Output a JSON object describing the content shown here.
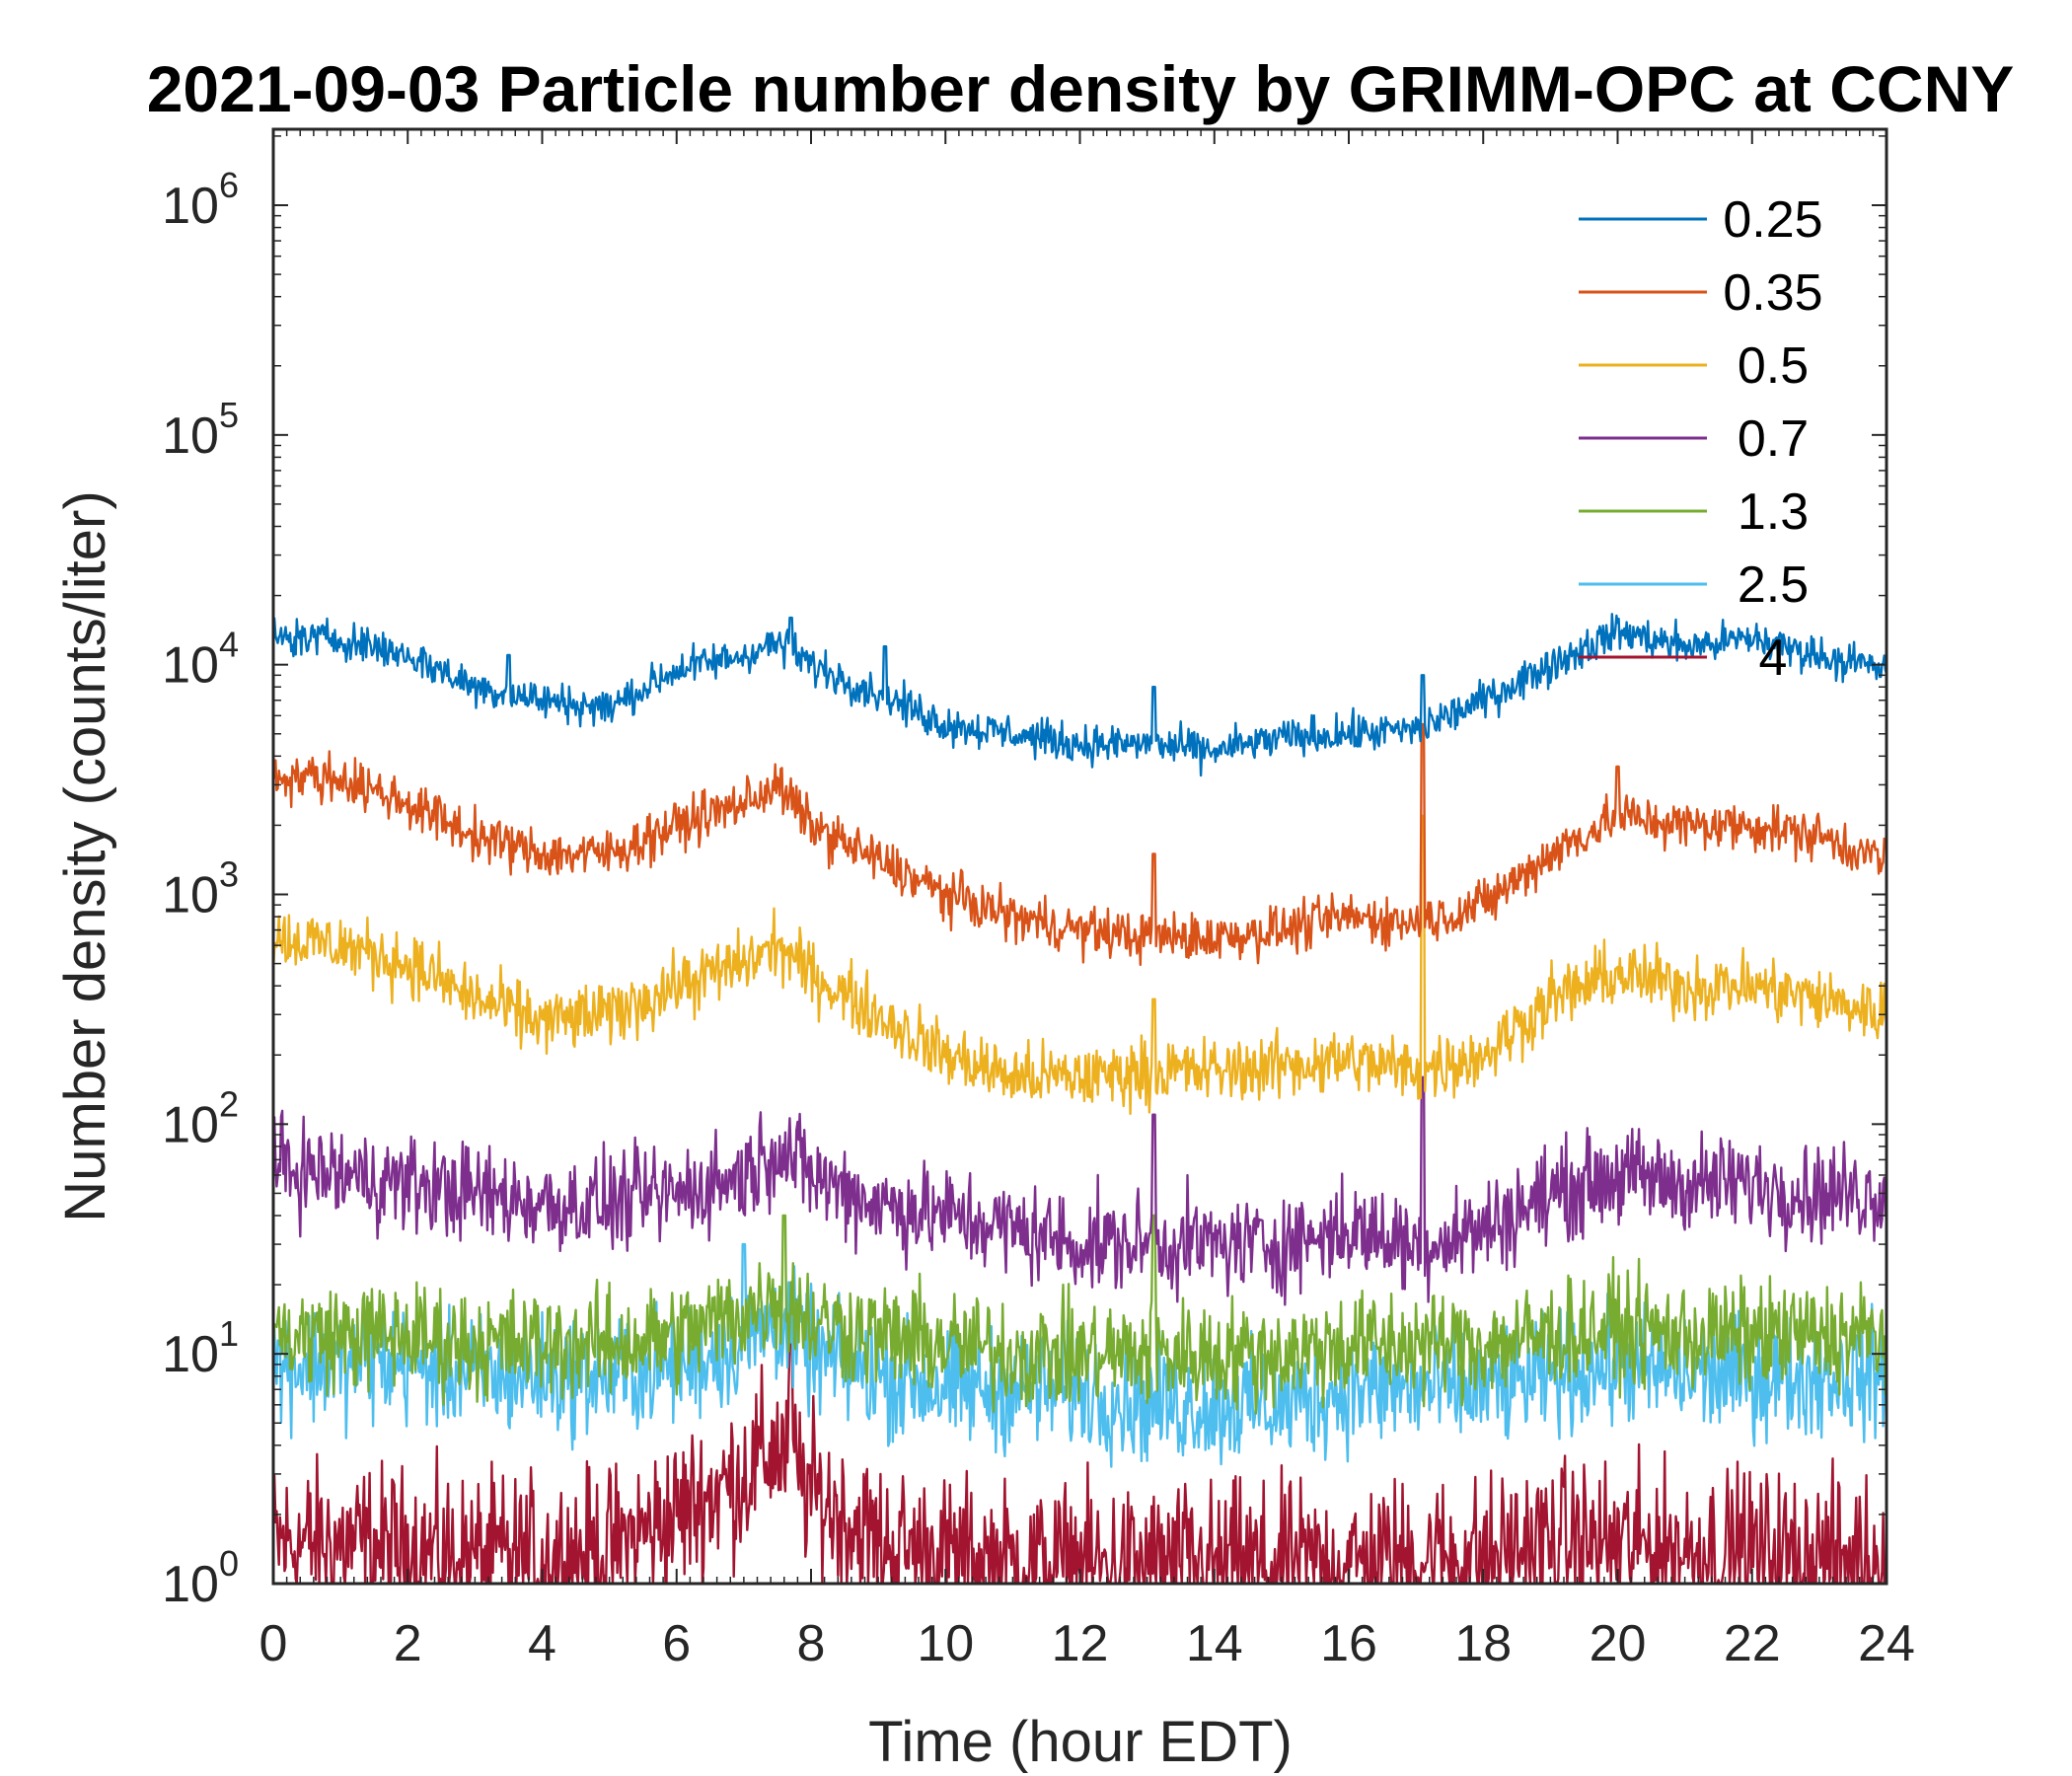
{
  "chart_data": {
    "type": "line",
    "title": "2021-09-03 Particle number density by GRIMM-OPC at CCNY",
    "xlabel": "Time (hour EDT)",
    "ylabel": "Number density (counts/liter)",
    "xlim": [
      0,
      24
    ],
    "ylim": [
      1,
      2000000
    ],
    "yscale": "log",
    "x_ticks": [
      "0",
      "2",
      "4",
      "6",
      "8",
      "10",
      "12",
      "14",
      "16",
      "18",
      "20",
      "22",
      "24"
    ],
    "y_ticks": [
      {
        "base": "10",
        "exp": "0"
      },
      {
        "base": "10",
        "exp": "1"
      },
      {
        "base": "10",
        "exp": "2"
      },
      {
        "base": "10",
        "exp": "3"
      },
      {
        "base": "10",
        "exp": "4"
      },
      {
        "base": "10",
        "exp": "5"
      },
      {
        "base": "10",
        "exp": "6"
      }
    ],
    "legend_position": "top-right",
    "grid": false,
    "x": [
      0,
      1,
      2,
      3,
      4,
      5,
      6,
      7,
      7.5,
      8,
      9,
      10,
      11,
      12,
      13,
      14,
      15,
      16,
      17,
      18,
      19,
      20,
      21,
      22,
      23,
      24
    ],
    "series": [
      {
        "name": "0.25",
        "color": "#0072BD",
        "noise": 0.07,
        "values": [
          13000,
          13000,
          11000,
          8000,
          7000,
          6500,
          9500,
          11000,
          12500,
          10000,
          7500,
          5500,
          5000,
          4500,
          4500,
          4200,
          4800,
          5000,
          5200,
          7000,
          10000,
          14000,
          12000,
          13000,
          11000,
          9500
        ],
        "spikes": [
          {
            "x": 7.7,
            "v": 16000
          },
          {
            "x": 9.1,
            "v": 12000
          },
          {
            "x": 3.5,
            "v": 11000
          },
          {
            "x": 13.1,
            "v": 8000
          },
          {
            "x": 17.1,
            "v": 9000
          }
        ]
      },
      {
        "name": "0.35",
        "color": "#D95319",
        "noise": 0.09,
        "values": [
          3300,
          3200,
          2500,
          1800,
          1500,
          1500,
          2000,
          2500,
          3000,
          2000,
          1400,
          1000,
          800,
          700,
          650,
          650,
          700,
          800,
          750,
          900,
          1500,
          2200,
          2000,
          2000,
          1800,
          1400
        ],
        "spikes": [
          {
            "x": 17.1,
            "v": 5500
          },
          {
            "x": 13.1,
            "v": 1500
          },
          {
            "x": 20.0,
            "v": 3600
          }
        ]
      },
      {
        "name": "0.5",
        "color": "#EDB120",
        "noise": 0.12,
        "values": [
          650,
          600,
          500,
          350,
          280,
          300,
          400,
          500,
          600,
          450,
          300,
          200,
          160,
          160,
          170,
          170,
          180,
          190,
          170,
          200,
          350,
          450,
          400,
          400,
          350,
          300
        ],
        "spikes": [
          {
            "x": 13.1,
            "v": 350
          },
          {
            "x": 17.1,
            "v": 2200
          },
          {
            "x": 11.7,
            "v": 80
          }
        ]
      },
      {
        "name": "0.7",
        "color": "#7E2F8E",
        "noise": 0.18,
        "values": [
          65,
          60,
          55,
          50,
          45,
          45,
          50,
          60,
          80,
          60,
          45,
          40,
          35,
          30,
          30,
          30,
          30,
          35,
          30,
          35,
          50,
          60,
          55,
          55,
          50,
          50
        ],
        "spikes": [
          {
            "x": 13.1,
            "v": 110
          },
          {
            "x": 17.1,
            "v": 160
          }
        ]
      },
      {
        "name": "1.3",
        "color": "#77AC30",
        "noise": 0.2,
        "values": [
          12,
          12,
          12,
          11,
          11,
          11,
          12,
          15,
          18,
          14,
          12,
          11,
          10,
          10,
          10,
          10,
          10,
          11,
          11,
          11,
          12,
          13,
          12,
          12,
          12,
          12
        ],
        "spikes": [
          {
            "x": 13.1,
            "v": 40
          },
          {
            "x": 7.6,
            "v": 40
          }
        ]
      },
      {
        "name": "2.5",
        "color": "#4DBEEE",
        "noise": 0.22,
        "values": [
          9,
          9,
          9,
          8,
          8,
          8,
          9,
          11,
          14,
          10,
          8,
          7,
          7,
          7,
          6,
          6,
          6,
          7,
          7,
          7,
          8,
          9,
          8,
          8,
          8,
          8
        ],
        "spikes": [
          {
            "x": 7.0,
            "v": 30
          }
        ]
      },
      {
        "name": "4",
        "color": "#A2142F",
        "noise": 0.3,
        "values": [
          1.5,
          1.5,
          1.4,
          1.3,
          1.3,
          1.4,
          2,
          3,
          4,
          2.5,
          1.5,
          1.3,
          1.2,
          1.2,
          1.2,
          1.2,
          1.2,
          1.2,
          1.3,
          1.3,
          1.5,
          1.5,
          1.4,
          1.4,
          1.3,
          1.3
        ],
        "spikes": [
          {
            "x": 7.7,
            "v": 11
          }
        ]
      }
    ]
  }
}
